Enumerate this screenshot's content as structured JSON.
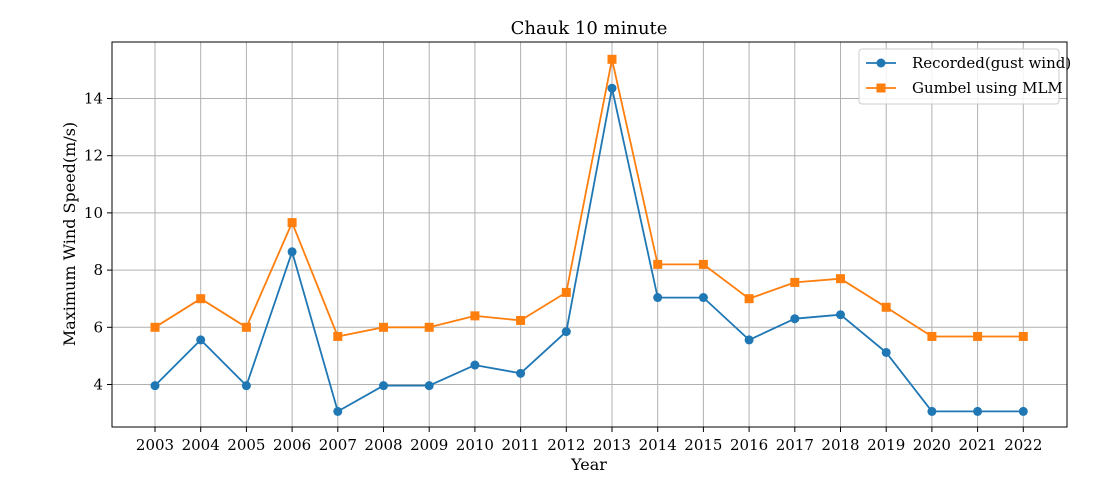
{
  "chart_data": {
    "type": "line",
    "title": "Chauk 10 minute",
    "xlabel": "Year",
    "ylabel": "Maximum Wind Speed(m/s)",
    "categories": [
      "2003",
      "2004",
      "2005",
      "2006",
      "2007",
      "2008",
      "2009",
      "2010",
      "2011",
      "2012",
      "2013",
      "2014",
      "2015",
      "2016",
      "2017",
      "2018",
      "2019",
      "2020",
      "2021",
      "2022"
    ],
    "yticks": [
      4,
      6,
      8,
      10,
      12,
      14
    ],
    "ylim": [
      2.5,
      15.9
    ],
    "grid": true,
    "legend_position": "top-right",
    "series": [
      {
        "name": "Recorded(gust wind)",
        "color": "#1f77b4",
        "marker": "circle",
        "values": [
          3.96,
          5.56,
          3.96,
          8.64,
          3.06,
          3.96,
          3.96,
          4.68,
          4.39,
          5.85,
          14.36,
          7.04,
          7.04,
          5.56,
          6.3,
          6.44,
          5.12,
          3.06,
          3.06,
          3.06
        ]
      },
      {
        "name": "Gumbel using MLM",
        "color": "#ff7f0e",
        "marker": "square",
        "values": [
          6.0,
          7.0,
          6.0,
          9.66,
          5.68,
          6.0,
          6.0,
          6.4,
          6.24,
          7.22,
          15.37,
          8.2,
          8.2,
          7.0,
          7.57,
          7.7,
          6.7,
          5.68,
          5.68,
          5.68
        ]
      }
    ]
  }
}
